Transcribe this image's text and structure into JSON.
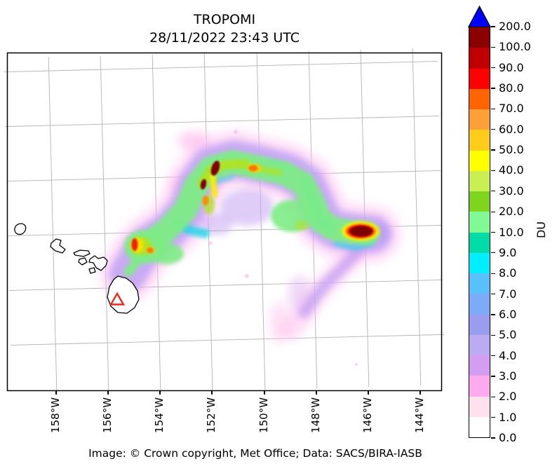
{
  "title": {
    "line1": "TROPOMI",
    "line2": "28/11/2022 23:43 UTC"
  },
  "caption": "Image: © Crown copyright, Met Office; Data: SACS/BIRA-IASB",
  "map": {
    "x_tick_labels": [
      "158°W",
      "156°W",
      "154°W",
      "152°W",
      "150°W",
      "148°W",
      "146°W",
      "144°W"
    ],
    "gridline_color": "#b3b3b3",
    "coastline_color": "#000000",
    "border_color": "#000000",
    "marker": {
      "symbol": "triangle-outline",
      "color": "#e8291f"
    }
  },
  "colorbar": {
    "label": "DU",
    "tick_labels": [
      "0.0",
      "1.0",
      "2.0",
      "3.0",
      "4.0",
      "5.0",
      "6.0",
      "7.0",
      "8.0",
      "9.0",
      "10.0",
      "20.0",
      "30.0",
      "40.0",
      "50.0",
      "60.0",
      "70.0",
      "80.0",
      "90.0",
      "100.0",
      "200.0"
    ],
    "segment_colors_bottom_to_top": [
      "#ffffff",
      "#ffe0ec",
      "#ffaaf0",
      "#d49cf2",
      "#bcaaf4",
      "#9a9cee",
      "#7cacf8",
      "#58c0fa",
      "#00eeff",
      "#00dca8",
      "#80fa94",
      "#7fd41e",
      "#c9ef52",
      "#ffff00",
      "#ffcc1c",
      "#ff9f38",
      "#ff6400",
      "#fe0000",
      "#c00000",
      "#8b0000"
    ],
    "over_color": "#0000ff"
  },
  "chart_data": {
    "type": "heatmap",
    "title": "TROPOMI",
    "subtitle": "28/11/2022 23:43 UTC",
    "x_tick_labels": [
      "158°W",
      "156°W",
      "154°W",
      "152°W",
      "150°W",
      "148°W",
      "146°W",
      "144°W"
    ],
    "colorbar_label": "DU",
    "colorbar_boundaries": [
      0.0,
      1.0,
      2.0,
      3.0,
      4.0,
      5.0,
      6.0,
      7.0,
      8.0,
      9.0,
      10.0,
      20.0,
      30.0,
      40.0,
      50.0,
      60.0,
      70.0,
      80.0,
      90.0,
      100.0,
      200.0
    ],
    "colorbar_colors": [
      "#ffffff",
      "#ffe0ec",
      "#ffaaf0",
      "#d49cf2",
      "#bcaaf4",
      "#9a9cee",
      "#7cacf8",
      "#58c0fa",
      "#00eeff",
      "#00dca8",
      "#80fa94",
      "#7fd41e",
      "#c9ef52",
      "#ffff00",
      "#ffcc1c",
      "#ff9f38",
      "#ff6400",
      "#fe0000",
      "#c00000",
      "#8b0000"
    ],
    "over_color": "#0000ff"
  }
}
